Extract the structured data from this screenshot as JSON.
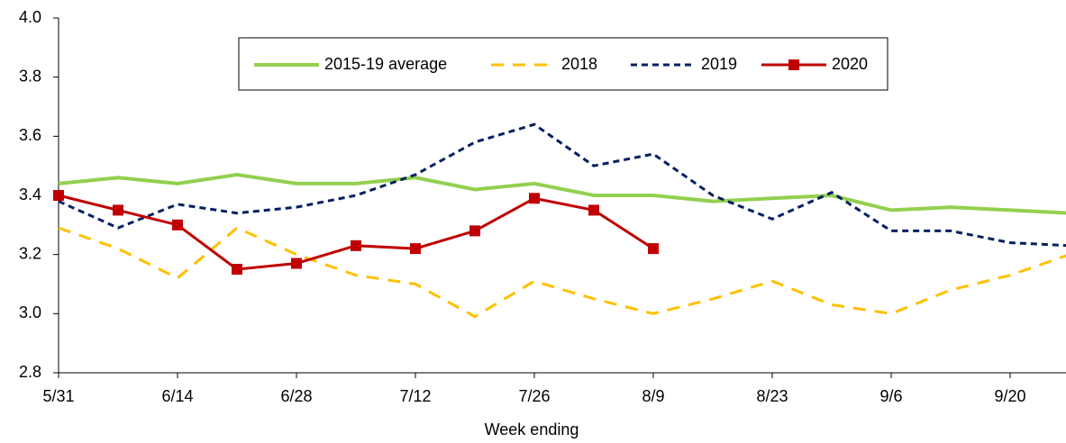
{
  "chart_data": {
    "type": "line",
    "x_label": "Week ending",
    "categories": [
      "5/31",
      null,
      "6/14",
      null,
      "6/28",
      null,
      "7/12",
      null,
      "7/26",
      null,
      "8/9",
      null,
      "8/23",
      null,
      "9/6",
      null,
      "9/20",
      null
    ],
    "series": [
      {
        "name": "2015-19 average",
        "color": "#92d050",
        "dash": "solid",
        "width": 4,
        "marker": null,
        "values": [
          3.44,
          3.46,
          3.44,
          3.47,
          3.44,
          3.44,
          3.46,
          3.42,
          3.44,
          3.4,
          3.4,
          3.38,
          3.39,
          3.4,
          3.35,
          3.36,
          3.35,
          3.34
        ]
      },
      {
        "name": "2018",
        "color": "#ffc000",
        "dash": "long",
        "width": 3,
        "marker": null,
        "values": [
          3.29,
          3.22,
          3.12,
          3.29,
          3.2,
          3.13,
          3.1,
          2.99,
          3.11,
          3.05,
          3.0,
          3.05,
          3.11,
          3.03,
          3.0,
          3.08,
          3.13,
          3.2
        ]
      },
      {
        "name": "2019",
        "color": "#002060",
        "dash": "short",
        "width": 3,
        "marker": null,
        "values": [
          3.38,
          3.29,
          3.37,
          3.34,
          3.36,
          3.4,
          3.47,
          3.58,
          3.64,
          3.5,
          3.54,
          3.4,
          3.32,
          3.41,
          3.28,
          3.28,
          3.24,
          3.23
        ]
      },
      {
        "name": "2020",
        "color": "#c00000",
        "dash": "solid",
        "width": 3,
        "marker": "square",
        "values": [
          3.4,
          3.35,
          3.3,
          3.15,
          3.17,
          3.23,
          3.22,
          3.28,
          3.39,
          3.35,
          3.22,
          null,
          null,
          null,
          null,
          null,
          null,
          null
        ]
      }
    ],
    "ylim": [
      2.8,
      4.0
    ],
    "yticks": [
      2.8,
      {
        "value": 3.0,
        "label": "3.0"
      },
      3.2,
      3.4,
      3.6,
      3.8,
      {
        "value": 4.0,
        "label": "4.0"
      }
    ],
    "legend": "top",
    "grid": false
  }
}
